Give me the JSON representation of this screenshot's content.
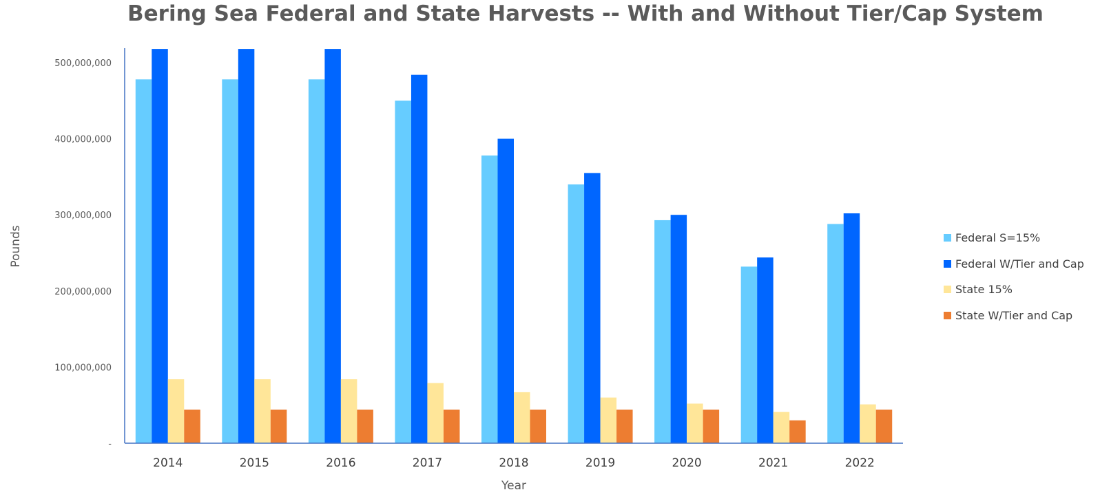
{
  "chart_data": {
    "type": "bar",
    "title": "Bering Sea Federal and State Harvests -- With and Without Tier/Cap System",
    "xlabel": "Year",
    "ylabel": "Pounds",
    "categories": [
      "2014",
      "2015",
      "2016",
      "2017",
      "2018",
      "2019",
      "2020",
      "2021",
      "2022"
    ],
    "ylim": [
      0,
      520000000
    ],
    "yticks": [
      0,
      100000000,
      200000000,
      300000000,
      400000000,
      500000000
    ],
    "ytick_labels": [
      "-",
      "100,000,000",
      "200,000,000",
      "300,000,000",
      "400,000,000",
      "500,000,000"
    ],
    "legend_position": "right",
    "grid": false,
    "series": [
      {
        "name": "Federal S=15%",
        "color": "#66ccff",
        "values": [
          478000000,
          478000000,
          478000000,
          450000000,
          378000000,
          340000000,
          293000000,
          232000000,
          288000000
        ]
      },
      {
        "name": "Federal W/Tier and Cap",
        "color": "#0066ff",
        "values": [
          518000000,
          518000000,
          518000000,
          484000000,
          400000000,
          355000000,
          300000000,
          244000000,
          302000000
        ]
      },
      {
        "name": "State 15%",
        "color": "#ffe699",
        "values": [
          84000000,
          84000000,
          84000000,
          79000000,
          67000000,
          60000000,
          52000000,
          41000000,
          51000000
        ]
      },
      {
        "name": "State W/Tier and Cap",
        "color": "#ed7d31",
        "values": [
          44000000,
          44000000,
          44000000,
          44000000,
          44000000,
          44000000,
          44000000,
          30000000,
          44000000
        ]
      }
    ]
  }
}
